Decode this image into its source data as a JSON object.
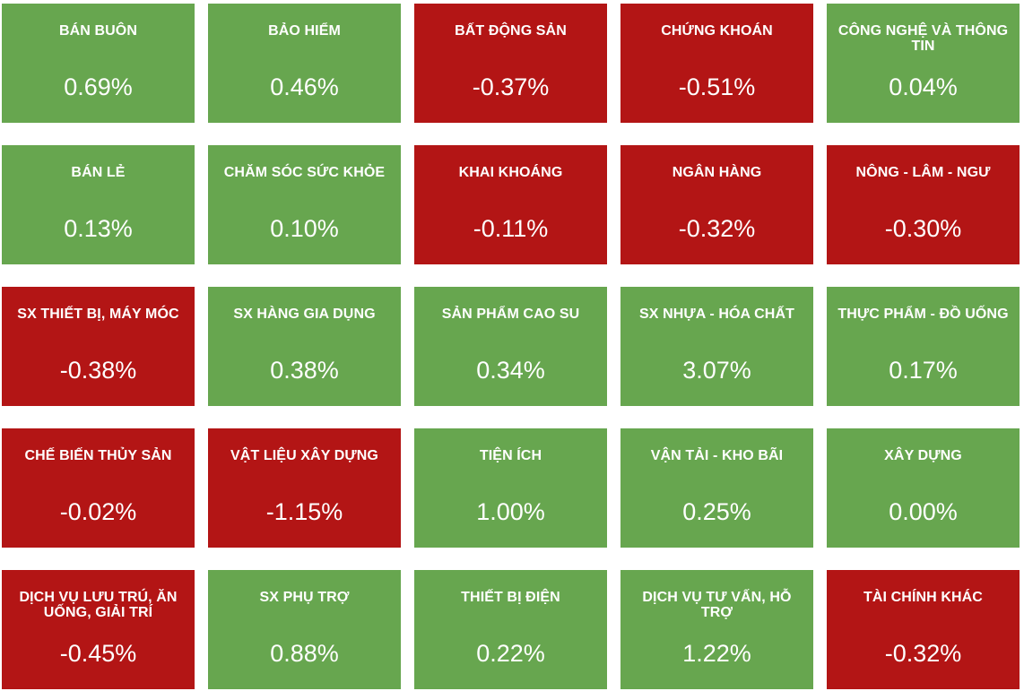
{
  "colors": {
    "up": "#67a64f",
    "down": "#b31515",
    "text": "#ffffff"
  },
  "sectors": [
    {
      "name": "BÁN BUÔN",
      "change": "0.69%",
      "trend": "up"
    },
    {
      "name": "BẢO HIỂM",
      "change": "0.46%",
      "trend": "up"
    },
    {
      "name": "BẤT ĐỘNG SẢN",
      "change": "-0.37%",
      "trend": "down"
    },
    {
      "name": "CHỨNG KHOÁN",
      "change": "-0.51%",
      "trend": "down"
    },
    {
      "name": "CÔNG NGHỆ VÀ THÔNG TIN",
      "change": "0.04%",
      "trend": "up"
    },
    {
      "name": "BÁN LẺ",
      "change": "0.13%",
      "trend": "up"
    },
    {
      "name": "CHĂM SÓC SỨC KHỎE",
      "change": "0.10%",
      "trend": "up"
    },
    {
      "name": "KHAI KHOÁNG",
      "change": "-0.11%",
      "trend": "down"
    },
    {
      "name": "NGÂN HÀNG",
      "change": "-0.32%",
      "trend": "down"
    },
    {
      "name": "NÔNG - LÂM - NGƯ",
      "change": "-0.30%",
      "trend": "down"
    },
    {
      "name": "SX THIẾT BỊ, MÁY MÓC",
      "change": "-0.38%",
      "trend": "down"
    },
    {
      "name": "SX HÀNG GIA DỤNG",
      "change": "0.38%",
      "trend": "up"
    },
    {
      "name": "SẢN PHẨM CAO SU",
      "change": "0.34%",
      "trend": "up"
    },
    {
      "name": "SX NHỰA - HÓA CHẤT",
      "change": "3.07%",
      "trend": "up"
    },
    {
      "name": "THỰC PHẨM - ĐỒ UỐNG",
      "change": "0.17%",
      "trend": "up"
    },
    {
      "name": "CHẾ BIẾN THỦY SẢN",
      "change": "-0.02%",
      "trend": "down"
    },
    {
      "name": "VẬT LIỆU XÂY DỰNG",
      "change": "-1.15%",
      "trend": "down"
    },
    {
      "name": "TIỆN ÍCH",
      "change": "1.00%",
      "trend": "up"
    },
    {
      "name": "VẬN TẢI - KHO BÃI",
      "change": "0.25%",
      "trend": "up"
    },
    {
      "name": "XÂY DỰNG",
      "change": "0.00%",
      "trend": "up"
    },
    {
      "name": "DỊCH VỤ LƯU TRÚ, ĂN UỐNG, GIẢI TRÍ",
      "change": "-0.45%",
      "trend": "down"
    },
    {
      "name": "SX PHỤ TRỢ",
      "change": "0.88%",
      "trend": "up"
    },
    {
      "name": "THIẾT BỊ ĐIỆN",
      "change": "0.22%",
      "trend": "up"
    },
    {
      "name": "DỊCH VỤ TƯ VẤN, HỖ TRỢ",
      "change": "1.22%",
      "trend": "up"
    },
    {
      "name": "TÀI CHÍNH KHÁC",
      "change": "-0.32%",
      "trend": "down"
    }
  ]
}
